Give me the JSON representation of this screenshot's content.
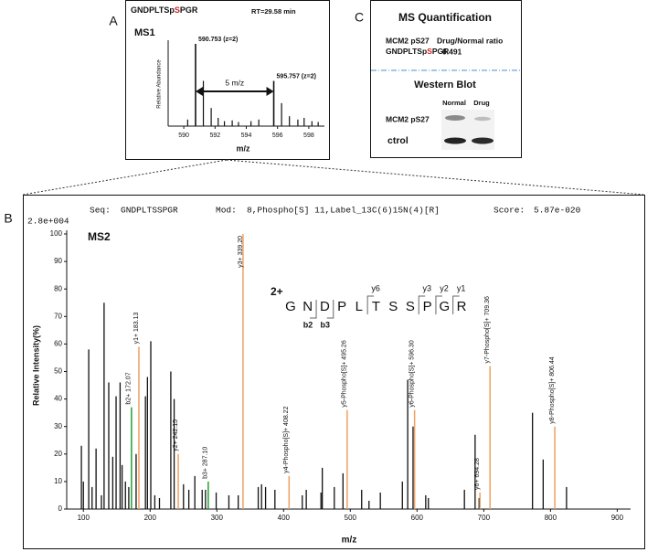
{
  "panel_labels": [
    "A",
    "B",
    "C"
  ],
  "chart_data": [
    {
      "type": "spectrum",
      "title": "MS1",
      "peptide": [
        "GNDPLTSp",
        "S",
        "PGR"
      ],
      "peptide_colors": [
        "#111",
        "#d62020",
        "#111"
      ],
      "rt": "RT=29.58 min",
      "xlabel": "m/z",
      "ylabel": "Relative Abundance",
      "xlim": [
        589,
        599
      ],
      "ylim": [
        0,
        100
      ],
      "xticks": [
        590,
        592,
        594,
        596,
        598
      ],
      "color": "#111",
      "x": [
        590.25,
        591.253,
        591.754,
        592.2,
        592.6,
        593.1,
        593.5,
        594.3,
        594.8,
        596.258,
        596.76,
        597.3,
        597.7,
        598.2,
        598.6
      ],
      "values": [
        8,
        55,
        22,
        10,
        6,
        7,
        5,
        6,
        8,
        28,
        12,
        8,
        10,
        6,
        5
      ],
      "labeled_peaks": [
        {
          "x": 590.753,
          "value": 100,
          "label": "590.753 (z=2)"
        },
        {
          "x": 595.757,
          "value": 55,
          "label": "595.757 (z=2)"
        }
      ],
      "arrow_label": "5 m/z"
    },
    {
      "type": "spectrum",
      "title": "MS2",
      "header": {
        "seq_key": "Seq:",
        "seq": "GNDPLTSSPGR",
        "mod_key": "Mod:",
        "mod": "8,Phospho[S] 11,Label_13C(6)15N(4)[R]",
        "score_key": "Score:",
        "score": "5.87e-020"
      },
      "scale_label": "2.8e+004",
      "xlabel": "m/z",
      "ylabel": "Relative Intensity(%)",
      "xlim": [
        75,
        920
      ],
      "ylim": [
        0,
        100
      ],
      "xticks": [
        100,
        200,
        300,
        400,
        500,
        600,
        700,
        800,
        900
      ],
      "yticks": [
        0,
        10,
        20,
        30,
        40,
        50,
        60,
        70,
        80,
        90,
        100
      ],
      "color": "#111",
      "x": [
        97,
        100,
        108,
        113,
        119,
        127,
        131,
        138,
        144,
        149,
        155,
        158,
        163,
        168,
        179,
        193,
        196,
        201,
        207,
        214,
        231,
        236,
        250,
        258,
        267,
        278,
        283,
        299,
        318,
        332,
        362,
        367,
        373,
        387,
        428,
        434,
        456,
        458,
        476,
        489,
        517,
        528,
        545,
        578,
        586,
        594,
        613,
        617,
        671,
        687,
        693,
        773,
        789,
        824
      ],
      "values": [
        23,
        10,
        58,
        8,
        22,
        5,
        75,
        46,
        19,
        41,
        46,
        16,
        10,
        8,
        20,
        41,
        48,
        61,
        5,
        4,
        50,
        40,
        9,
        7,
        12,
        7,
        7,
        6,
        5,
        5,
        8,
        9,
        8,
        7,
        5,
        7,
        6,
        15,
        8,
        13,
        7,
        3,
        6,
        10,
        47,
        30,
        5,
        4,
        7,
        27,
        4,
        35,
        18,
        8
      ],
      "ions": [
        {
          "label": "b2+ 172.07",
          "x": 172.07,
          "value": 37,
          "color": "#22a032"
        },
        {
          "label": "y1+ 183.13",
          "x": 183.13,
          "value": 59,
          "color": "#f0a060"
        },
        {
          "label": "y2+ 242.15",
          "x": 242.15,
          "value": 20,
          "color": "#f0a060"
        },
        {
          "label": "b3+ 287.10",
          "x": 287.1,
          "value": 10,
          "color": "#22a032"
        },
        {
          "label": "y3+ 339.20",
          "x": 339.2,
          "value": 100,
          "color": "#f0a060"
        },
        {
          "label": "y4-Phospho[S]+ 408.22",
          "x": 408.22,
          "value": 12,
          "color": "#f0a060"
        },
        {
          "label": "y5-Phospho[S]+ 495.26",
          "x": 495.26,
          "value": 36,
          "color": "#f0a060"
        },
        {
          "label": "y6-Phospho[S]+ 596.30",
          "x": 596.3,
          "value": 36,
          "color": "#f0a060"
        },
        {
          "label": "y6+ 694.28",
          "x": 694.28,
          "value": 6,
          "color": "#f0a060"
        },
        {
          "label": "y7-Phospho[S]+ 709.36",
          "x": 709.36,
          "value": 52,
          "color": "#f0a060"
        },
        {
          "label": "y8-Phospho[S]+ 806.44",
          "x": 806.44,
          "value": 30,
          "color": "#f0a060"
        }
      ],
      "sequence": {
        "charge": "2+",
        "residues": [
          "G",
          "N",
          "D",
          "P",
          "L",
          "T",
          "S",
          "S",
          "P",
          "G",
          "R"
        ],
        "highlight": [
          7,
          10
        ],
        "highlight_color": "#e02020",
        "y_ions": [
          "y6",
          "y3",
          "y2",
          "y1"
        ],
        "b_ions": [
          "b2",
          "b3"
        ],
        "y_color": "#f0a060",
        "b_color": "#22a032"
      }
    }
  ],
  "quantification": {
    "title": "MS Quantification",
    "protein": "MCM2 pS27",
    "ratio_label": "Drug/Normal ratio",
    "peptide": [
      "GNDPLTSp",
      "S",
      "PGR"
    ],
    "ratio": 0.491
  },
  "western": {
    "title": "Western Blot",
    "lanes": [
      "Normal",
      "Drug"
    ],
    "rows": [
      "MCM2 pS27",
      "ctrol"
    ]
  }
}
